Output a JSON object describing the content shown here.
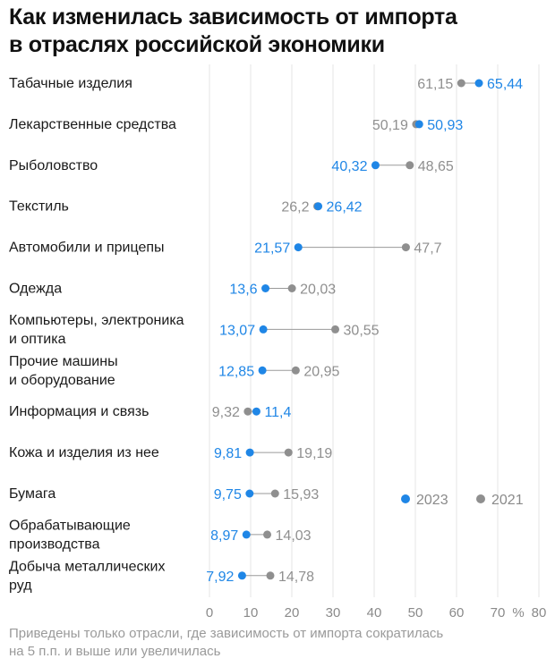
{
  "colors": {
    "y2023": "#1f86e6",
    "y2021": "#8f8f8f",
    "grid": "#e6e6e6",
    "connector": "#9a9a9a"
  },
  "title": {
    "line1": "Как изменилась зависимость от импорта",
    "line2": "в отраслях российской экономики"
  },
  "footnote": {
    "line1": "Приведены только отрасли, где зависимость от импорта сократилась",
    "line2": "на 5 п.п. и выше или увеличилась"
  },
  "chart_data": {
    "type": "dumbbell",
    "title": "Как изменилась зависимость от импорта в отраслях российской экономики",
    "xunit": "%",
    "xlim": [
      0,
      80
    ],
    "xticks": [
      0,
      10,
      20,
      30,
      40,
      50,
      60,
      70,
      80
    ],
    "xtick_labels": [
      "0",
      "10",
      "20",
      "30",
      "40",
      "50",
      "60",
      "70",
      "80"
    ],
    "grid": true,
    "legend": {
      "placement": "bottom-right",
      "entries": [
        "2023",
        "2021"
      ]
    },
    "categories": [
      [
        "Табачные изделия"
      ],
      [
        "Лекарственные средства"
      ],
      [
        "Рыболовство"
      ],
      [
        "Текстиль"
      ],
      [
        "Автомобили и прицепы"
      ],
      [
        "Одежда"
      ],
      [
        "Компьютеры, электроника",
        "и оптика"
      ],
      [
        "Прочие машины",
        "и оборудование"
      ],
      [
        "Информация и связь"
      ],
      [
        "Кожа и изделия из нее"
      ],
      [
        "Бумага"
      ],
      [
        "Обрабатывающие",
        "производства"
      ],
      [
        "Добыча металлических",
        "руд"
      ]
    ],
    "series": [
      {
        "name": "2023",
        "values": [
          65.44,
          50.93,
          40.32,
          26.42,
          21.57,
          13.6,
          13.07,
          12.85,
          11.4,
          9.81,
          9.75,
          8.97,
          7.92
        ],
        "labels": [
          "65,44",
          "50,93",
          "40,32",
          "26,42",
          "21,57",
          "13,6",
          "13,07",
          "12,85",
          "11,4",
          "9,81",
          "9,75",
          "8,97",
          "7,92"
        ]
      },
      {
        "name": "2021",
        "values": [
          61.15,
          50.19,
          48.65,
          26.2,
          47.7,
          20.03,
          30.55,
          20.95,
          9.32,
          19.19,
          15.93,
          14.03,
          14.78
        ],
        "labels": [
          "61,15",
          "50,19",
          "48,65",
          "26,2",
          "47,7",
          "20,03",
          "30,55",
          "20,95",
          "9,32",
          "19,19",
          "15,93",
          "14,03",
          "14,78"
        ]
      }
    ]
  }
}
